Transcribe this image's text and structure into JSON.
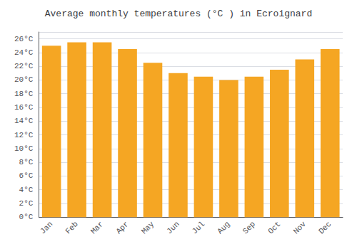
{
  "chart_data": {
    "type": "bar",
    "title": "Average monthly temperatures (°C ) in Ecroignard",
    "categories": [
      "Jan",
      "Feb",
      "Mar",
      "Apr",
      "May",
      "Jun",
      "Jul",
      "Aug",
      "Sep",
      "Oct",
      "Nov",
      "Dec"
    ],
    "values": [
      25.0,
      25.5,
      25.5,
      24.5,
      22.5,
      21.0,
      20.5,
      20.0,
      20.5,
      21.5,
      23.0,
      24.5
    ],
    "color": "#F5A623",
    "ylim": [
      0,
      27
    ],
    "yticks": [
      {
        "value": 0,
        "label": "0°C"
      },
      {
        "value": 2,
        "label": "2°C"
      },
      {
        "value": 4,
        "label": "4°C"
      },
      {
        "value": 6,
        "label": "6°C"
      },
      {
        "value": 8,
        "label": "8°C"
      },
      {
        "value": 10,
        "label": "10°C"
      },
      {
        "value": 12,
        "label": "12°C"
      },
      {
        "value": 14,
        "label": "14°C"
      },
      {
        "value": 16,
        "label": "16°C"
      },
      {
        "value": 18,
        "label": "18°C"
      },
      {
        "value": 20,
        "label": "20°C"
      },
      {
        "value": 22,
        "label": "22°C"
      },
      {
        "value": 24,
        "label": "24°C"
      },
      {
        "value": 26,
        "label": "26°C"
      }
    ],
    "grid": true
  }
}
